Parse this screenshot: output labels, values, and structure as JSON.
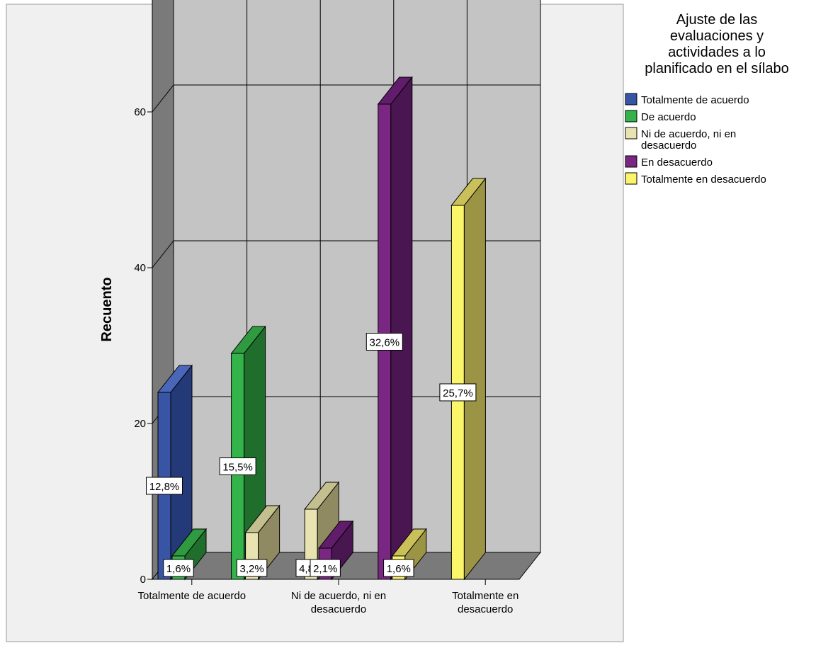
{
  "chart_data": {
    "type": "bar",
    "subtype": "3d-clustered",
    "ylabel": "Recuento",
    "xlabel": "",
    "ylim": [
      0,
      75
    ],
    "yticks": [
      0,
      20,
      40,
      60
    ],
    "grid": true,
    "legend_placement": "right",
    "legend_title": [
      "Ajuste de las",
      "evaluaciones y",
      "actividades a lo",
      "planificado en el sílabo"
    ],
    "categories": [
      [
        "Totalmente de acuerdo"
      ],
      [
        "De acuerdo"
      ],
      [
        "Ni de acuerdo, ni en",
        "desacuerdo"
      ],
      [
        "En desacuerdo"
      ],
      [
        "Totalmente en",
        "desacuerdo"
      ]
    ],
    "visible_category_labels": [
      0,
      2,
      4
    ],
    "series": [
      {
        "name": "Totalmente de acuerdo",
        "color": "#3855a5",
        "top": "#4a66b8",
        "side": "#243a78"
      },
      {
        "name": "De acuerdo",
        "color": "#33b34a",
        "top": "#2f9a3f",
        "side": "#1f6e2c"
      },
      {
        "name": "Ni de acuerdo, ni en desacuerdo",
        "color": "#e8e3b0",
        "top": "#c4bf8e",
        "side": "#908a62"
      },
      {
        "name": "En desacuerdo",
        "color": "#7a2683",
        "top": "#611d6b",
        "side": "#4a1652"
      },
      {
        "name": "Totalmente en desacuerdo",
        "color": "#fbf56a",
        "top": "#c9c05a",
        "side": "#9b9444"
      }
    ],
    "bars": [
      {
        "category": 0,
        "series": 0,
        "value": 24,
        "label": "12,8%"
      },
      {
        "category": 0,
        "series": 1,
        "value": 3,
        "label": "1,6%"
      },
      {
        "category": 1,
        "series": 1,
        "value": 29,
        "label": "15,5%"
      },
      {
        "category": 1,
        "series": 2,
        "value": 6,
        "label": "3,2%"
      },
      {
        "category": 2,
        "series": 2,
        "value": 9,
        "label": "4,8%"
      },
      {
        "category": 2,
        "series": 3,
        "value": 4,
        "label": "2,1%"
      },
      {
        "category": 3,
        "series": 3,
        "value": 61,
        "label": "32,6%"
      },
      {
        "category": 3,
        "series": 4,
        "value": 3,
        "label": "1,6%"
      },
      {
        "category": 4,
        "series": 4,
        "value": 48,
        "label": "25,7%"
      }
    ]
  }
}
